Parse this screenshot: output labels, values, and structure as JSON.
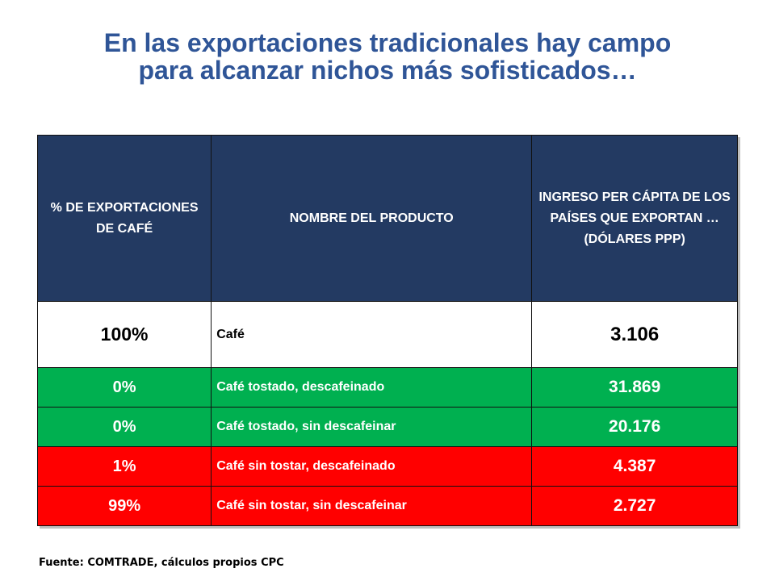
{
  "title": {
    "line1": "En las exportaciones tradicionales hay campo",
    "line2": "para alcanzar nichos más sofisticados…"
  },
  "table": {
    "headers": [
      "% DE EXPORTACIONES DE CAFÉ",
      "NOMBRE DEL PRODUCTO",
      "INGRESO PER CÁPITA DE LOS PAÍSES QUE EXPORTAN … (DÓLARES PPP)"
    ],
    "rows": [
      {
        "pct": "100%",
        "name": "Café",
        "value": "3.106",
        "color": "#ffffff"
      },
      {
        "pct": "0%",
        "name": "Café tostado, descafeinado",
        "value": "31.869",
        "color": "#00b050"
      },
      {
        "pct": "0%",
        "name": "Café tostado, sin descafeinar",
        "value": "20.176",
        "color": "#00b050"
      },
      {
        "pct": "1%",
        "name": "Café sin tostar, descafeinado",
        "value": "4.387",
        "color": "#ff0000"
      },
      {
        "pct": "99%",
        "name": "Café sin tostar, sin descafeinar",
        "value": "2.727",
        "color": "#ff0000"
      }
    ]
  },
  "source": "Fuente:  COMTRADE, cálculos propios CPC"
}
